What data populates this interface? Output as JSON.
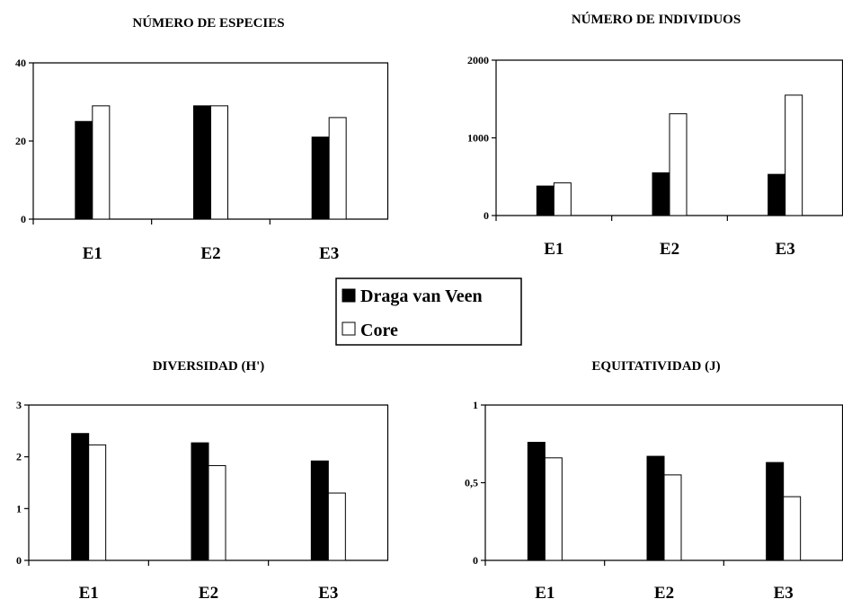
{
  "legend": {
    "series": [
      {
        "name": "Draga van Veen",
        "color": "#000000"
      },
      {
        "name": "Core",
        "color": "#ffffff"
      }
    ]
  },
  "chart_data": [
    {
      "type": "bar",
      "title": "NÚMERO DE ESPECIES",
      "categories": [
        "E1",
        "E2",
        "E3"
      ],
      "series": [
        {
          "name": "Draga van Veen",
          "values": [
            25,
            29,
            21
          ]
        },
        {
          "name": "Core",
          "values": [
            29,
            29,
            26
          ]
        }
      ],
      "ylim": [
        0,
        40
      ],
      "yticks": [
        "0",
        "20",
        "40"
      ],
      "ytick_values": [
        0,
        20,
        40
      ]
    },
    {
      "type": "bar",
      "title": "NÚMERO DE INDIVIDUOS",
      "categories": [
        "E1",
        "E2",
        "E3"
      ],
      "series": [
        {
          "name": "Draga van Veen",
          "values": [
            380,
            550,
            530
          ]
        },
        {
          "name": "Core",
          "values": [
            420,
            1310,
            1550
          ]
        }
      ],
      "ylim": [
        0,
        2000
      ],
      "yticks": [
        "0",
        "1000",
        "2000"
      ],
      "ytick_values": [
        0,
        1000,
        2000
      ]
    },
    {
      "type": "bar",
      "title": "DIVERSIDAD (H')",
      "categories": [
        "E1",
        "E2",
        "E3"
      ],
      "series": [
        {
          "name": "Draga van Veen",
          "values": [
            2.45,
            2.27,
            1.92
          ]
        },
        {
          "name": "Core",
          "values": [
            2.23,
            1.83,
            1.3
          ]
        }
      ],
      "ylim": [
        0,
        3
      ],
      "yticks": [
        "0",
        "1",
        "2",
        "3"
      ],
      "ytick_values": [
        0,
        1,
        2,
        3
      ]
    },
    {
      "type": "bar",
      "title": "EQUITATIVIDAD (J)",
      "categories": [
        "E1",
        "E2",
        "E3"
      ],
      "series": [
        {
          "name": "Draga van Veen",
          "values": [
            0.76,
            0.67,
            0.63
          ]
        },
        {
          "name": "Core",
          "values": [
            0.66,
            0.55,
            0.41
          ]
        }
      ],
      "ylim": [
        0,
        1
      ],
      "yticks": [
        "0",
        "0,5",
        "1"
      ],
      "ytick_values": [
        0,
        0.5,
        1
      ]
    }
  ]
}
